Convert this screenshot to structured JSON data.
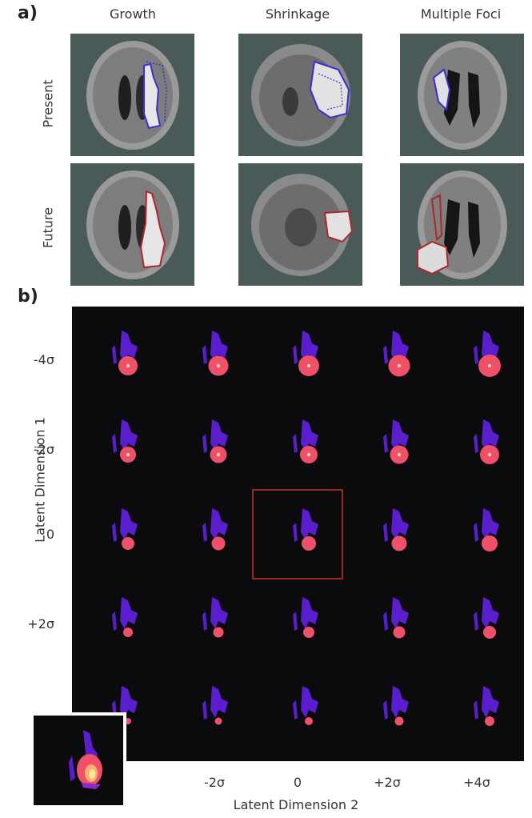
{
  "panel_a": {
    "label": "a)",
    "columns": [
      "Growth",
      "Shrinkage",
      "Multiple Foci"
    ],
    "rows": [
      "Present",
      "Future"
    ]
  },
  "panel_b": {
    "label": "b)",
    "y_ticks": [
      "-4σ",
      "-2σ",
      "0",
      "+2σ"
    ],
    "x_ticks": [
      "-2σ",
      "0",
      "+2σ",
      "+4σ"
    ],
    "xlabel": "Latent Dimension 2",
    "ylabel": "Latent Dimension 1"
  },
  "colors": {
    "present_contour": "#3b2fd0",
    "future_contour": "#b0262a",
    "tumor_core": "#f0506a",
    "tumor_bright": "#ffe4a0",
    "edema": "#5a1ecf",
    "highlight_box": "#d0321e",
    "panel_bg": "#0b0b0e"
  }
}
